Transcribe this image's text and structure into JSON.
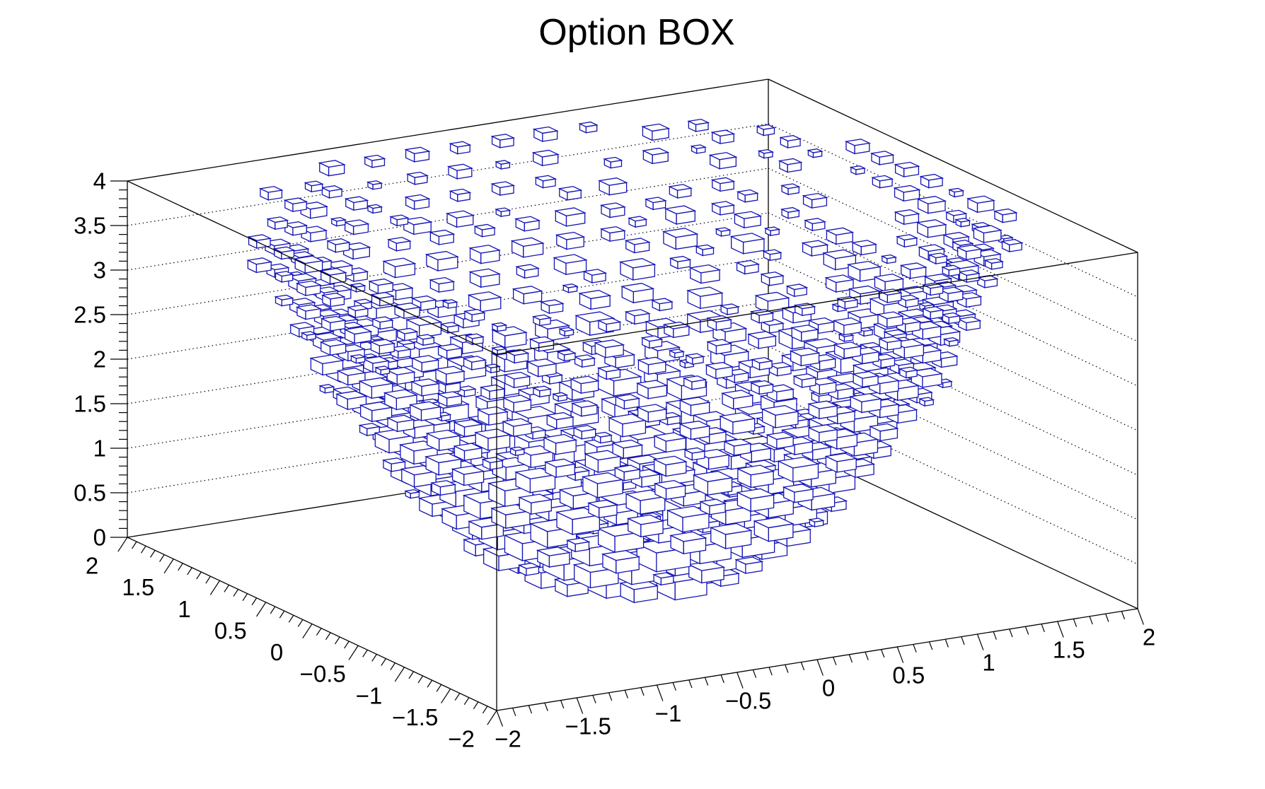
{
  "chart_data": {
    "type": "box3d",
    "title": "Option BOX",
    "box_color": "#1414b4",
    "grid": true,
    "bins": {
      "x": 15,
      "y": 15,
      "z": 15
    },
    "x_axis": {
      "range": [
        -2,
        2
      ],
      "ticks": [
        -2,
        -1.5,
        -1,
        -0.5,
        0,
        0.5,
        1,
        1.5,
        2
      ],
      "tick_labels": [
        "−2",
        "−1.5",
        "−1",
        "−0.5",
        "0",
        "0.5",
        "1",
        "1.5",
        "2"
      ]
    },
    "y_axis": {
      "range": [
        -2,
        2
      ],
      "ticks": [
        2,
        1.5,
        1,
        0.5,
        0,
        -0.5,
        -1,
        -1.5,
        -2
      ],
      "tick_labels": [
        "2",
        "1.5",
        "1",
        "0.5",
        "0",
        "−0.5",
        "−1",
        "−1.5",
        "−2"
      ]
    },
    "z_axis": {
      "range": [
        0,
        4
      ],
      "ticks": [
        0,
        0.5,
        1,
        1.5,
        2,
        2.5,
        3,
        3.5,
        4
      ],
      "tick_labels": [
        "0",
        "0.5",
        "1",
        "1.5",
        "2",
        "2.5",
        "3",
        "3.5",
        "4"
      ]
    }
  }
}
